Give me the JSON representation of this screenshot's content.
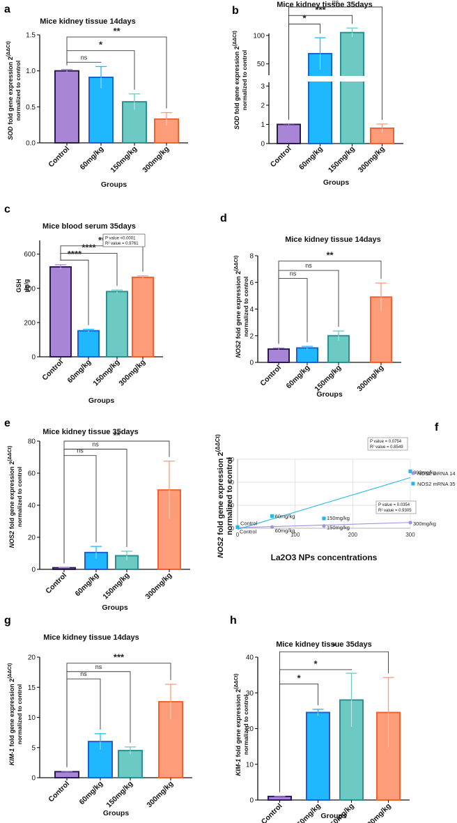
{
  "colors": {
    "control": "#a885d6",
    "control_edge": "#2b1a4f",
    "d60": "#1fb8ff",
    "d60_edge": "#1f5fd0",
    "d150": "#6cc9c4",
    "d150_edge": "#2c8f90",
    "d300": "#fc9c78",
    "d300_edge": "#f2622e",
    "sig": "#222222",
    "sig_line": "#3a3a3a",
    "axis": "#111111",
    "nos14": "#a48fe3",
    "nos35": "#25b8e6"
  },
  "chart_data": [
    {
      "panel": "a",
      "type": "bar",
      "title": "Mice kidney tissue 14days",
      "ylabel_gene": "SOD",
      "ylabel_mid": " fold gene expression 2",
      "ylabel_sup": "(ΔΔCt)",
      "ylabel2": "normalized to control",
      "xlabel": "Groups",
      "categories": [
        "Control",
        "60mg/kg",
        "150mg/kg",
        "300mg/kg"
      ],
      "values": [
        1.0,
        0.91,
        0.57,
        0.33
      ],
      "errors": [
        0.02,
        0.15,
        0.11,
        0.09
      ],
      "ylim": [
        0,
        1.5
      ],
      "yticks": [
        0.0,
        0.5,
        1.0,
        1.5
      ],
      "ytick_labels": [
        "0.0",
        "0.5",
        "1.0",
        "1.5"
      ],
      "sig": [
        {
          "to": 1,
          "label": "ns",
          "y": 1.12
        },
        {
          "to": 2,
          "label": "*",
          "y": 1.28
        },
        {
          "to": 3,
          "label": "**",
          "y": 1.47
        }
      ]
    },
    {
      "panel": "b",
      "type": "bar",
      "title": "Mice kidney tissue 35days",
      "ylabel_gene": "SOD",
      "ylabel_mid": " fold gene expression 2",
      "ylabel_sup": "(ΔΔCt)",
      "ylabel2": "normalized to control",
      "xlabel": "Groups",
      "categories": [
        "Control",
        "60mg/kg",
        "150mg/kg",
        "300mg/kg"
      ],
      "values": [
        1.0,
        68,
        105,
        0.8
      ],
      "errors": [
        0.03,
        28,
        8,
        0.22
      ],
      "yticks": [
        0,
        1,
        2,
        3,
        50,
        100
      ],
      "ytick_labels": [
        "0",
        "1",
        "2",
        "3",
        "50",
        "100"
      ],
      "axis_break": {
        "lower": [
          0,
          3.2
        ],
        "upper": [
          30,
          150
        ]
      },
      "sig": [
        {
          "to": 1,
          "label": "*",
          "y": 120
        },
        {
          "to": 2,
          "label": "***",
          "y": 135
        },
        {
          "to": 3,
          "label": "ns",
          "y": 150
        }
      ]
    },
    {
      "panel": "c",
      "type": "bar",
      "title": "Mice blood serum 35days",
      "ylabel": "GSH",
      "ylabel2": "µg/g",
      "xlabel": "Groups",
      "categories": [
        "Control",
        "60mg/kg",
        "150mg/kg",
        "300mg/kg"
      ],
      "values": [
        525,
        152,
        381,
        464
      ],
      "errors": [
        13,
        9,
        9,
        9
      ],
      "ylim": [
        0,
        680
      ],
      "yticks": [
        0,
        200,
        400,
        600
      ],
      "ytick_labels": [
        "0",
        "200",
        "400",
        "600"
      ],
      "sig": [
        {
          "to": 1,
          "label": "****",
          "y": 565
        },
        {
          "to": 2,
          "label": "****",
          "y": 605
        },
        {
          "to": 3,
          "label": "**",
          "y": 648
        }
      ],
      "stats_box": [
        "P value <0.0001",
        "R² value = 0.9761"
      ]
    },
    {
      "panel": "d",
      "type": "bar",
      "title": "Mice kidney tissue 14days",
      "ylabel_gene": "NOS2",
      "ylabel_mid": " fold gene expression 2",
      "ylabel_sup": "(ΔΔCt)",
      "ylabel2": "normalized to control",
      "xlabel": "Groups",
      "categories": [
        "Control",
        "60mg/kg",
        "150mg/kg",
        "300mg/kg"
      ],
      "values": [
        1.0,
        1.08,
        2.0,
        4.9
      ],
      "errors": [
        0.08,
        0.12,
        0.35,
        1.05
      ],
      "ylim": [
        0,
        8
      ],
      "yticks": [
        0,
        2,
        4,
        6,
        8
      ],
      "ytick_labels": [
        "0",
        "2",
        "4",
        "6",
        "8"
      ],
      "sig": [
        {
          "to": 1,
          "label": "ns",
          "y": 6.3
        },
        {
          "to": 2,
          "label": "ns",
          "y": 6.9
        },
        {
          "to": 3,
          "label": "**",
          "y": 7.6
        }
      ]
    },
    {
      "panel": "e",
      "type": "bar",
      "title": "Mice kidney tissue 35days",
      "ylabel_gene": "NOS2",
      "ylabel_mid": " fold gene expression 2",
      "ylabel_sup": "(ΔΔCt)",
      "ylabel2": "normalized to control",
      "xlabel": "Groups",
      "categories": [
        "Control",
        "60mg/kg",
        "150mg/kg",
        "300mg/kg"
      ],
      "values": [
        1.0,
        10.5,
        8.5,
        49.5
      ],
      "errors": [
        0.1,
        3.8,
        2.8,
        18
      ],
      "ylim": [
        0,
        80
      ],
      "yticks": [
        0,
        20,
        40,
        60,
        80
      ],
      "ytick_labels": [
        "0",
        "20",
        "40",
        "60",
        "80"
      ],
      "sig": [
        {
          "to": 1,
          "label": "ns",
          "y": 71
        },
        {
          "to": 2,
          "label": "ns",
          "y": 75
        },
        {
          "to": 3,
          "label": "**",
          "y": 80
        }
      ]
    },
    {
      "panel": "f",
      "type": "scatter",
      "ylabel_gene": "NOS2",
      "ylabel_mid": " fold gene expression 2",
      "ylabel_sup": "(ΔΔCt)",
      "ylabel2": "normalized to control",
      "xlabel": "La2O3 NPs concentrations",
      "xlim": [
        0,
        300
      ],
      "xticks": [
        0,
        100,
        200,
        300
      ],
      "xtick_labels": [
        "0",
        "100",
        "200",
        "300"
      ],
      "ylim": [
        0,
        60
      ],
      "yticks": [
        0,
        20,
        40,
        60
      ],
      "ytick_labels": [
        "0",
        "20",
        "40",
        "60"
      ],
      "series": [
        {
          "name": "NOS2 mRNA 14",
          "x": [
            0,
            60,
            150,
            300
          ],
          "y": [
            1.0,
            1.08,
            2.0,
            4.9
          ],
          "point_labels": [
            "Control",
            "60mg/kg",
            "150mg/kg",
            "300mg/kg"
          ],
          "fit": [
            [
              0,
              0.5
            ],
            [
              300,
              5.0
            ]
          ],
          "stats": [
            "P value = 0.0354",
            "R² value = 0.9305"
          ]
        },
        {
          "name": "NOS2 mRNA 35",
          "x": [
            0,
            60,
            150,
            300
          ],
          "y": [
            1.0,
            10.5,
            8.5,
            49.5
          ],
          "point_labels": [
            "Control",
            "60mg/kg",
            "150mg/kg",
            "300mg/kg"
          ],
          "fit": [
            [
              0,
              -1.0
            ],
            [
              300,
              44.0
            ]
          ],
          "stats": [
            "P value = 0.0754",
            "R² value = 0.8549"
          ]
        }
      ]
    },
    {
      "panel": "g",
      "type": "bar",
      "title": "Mice kidney tissue 14days",
      "ylabel_gene": "KIM-1",
      "ylabel_mid": " fold gene expression 2",
      "ylabel_sup": "(ΔΔCt)",
      "ylabel2": "normalized to control",
      "xlabel": "Groups",
      "categories": [
        "Control",
        "60mg/kg",
        "150mg/kg",
        "300mg/kg"
      ],
      "values": [
        1.0,
        6.0,
        4.5,
        12.6
      ],
      "errors": [
        0.05,
        1.3,
        0.6,
        2.9
      ],
      "ylim": [
        0,
        20
      ],
      "yticks": [
        0,
        5,
        10,
        15,
        20
      ],
      "ytick_labels": [
        "0",
        "5",
        "10",
        "15",
        "20"
      ],
      "sig": [
        {
          "to": 1,
          "label": "ns",
          "y": 16.4
        },
        {
          "to": 2,
          "label": "ns",
          "y": 17.6
        },
        {
          "to": 3,
          "label": "***",
          "y": 19.0
        }
      ]
    },
    {
      "panel": "h",
      "type": "bar",
      "title": "Mice kidney tissue 35days",
      "ylabel_gene": "KIM-1",
      "ylabel_mid": " fold gene expression 2",
      "ylabel_sup": "(ΔΔCt)",
      "ylabel2": "normalized to control",
      "xlabel": "Groups",
      "categories": [
        "Control",
        "60mg/kg",
        "150mg/kg",
        "300mg/kg"
      ],
      "values": [
        1.0,
        24.5,
        28.0,
        24.5
      ],
      "errors": [
        0.05,
        0.9,
        7.5,
        9.8
      ],
      "ylim": [
        0,
        40
      ],
      "yticks": [
        0,
        10,
        20,
        30,
        40
      ],
      "ytick_labels": [
        "0",
        "10",
        "20",
        "30",
        "40"
      ],
      "sig": [
        {
          "to": 1,
          "label": "*",
          "y": 32.5
        },
        {
          "to": 2,
          "label": "*",
          "y": 36.5
        },
        {
          "to": 3,
          "label": "*",
          "y": 41.5
        }
      ]
    }
  ]
}
